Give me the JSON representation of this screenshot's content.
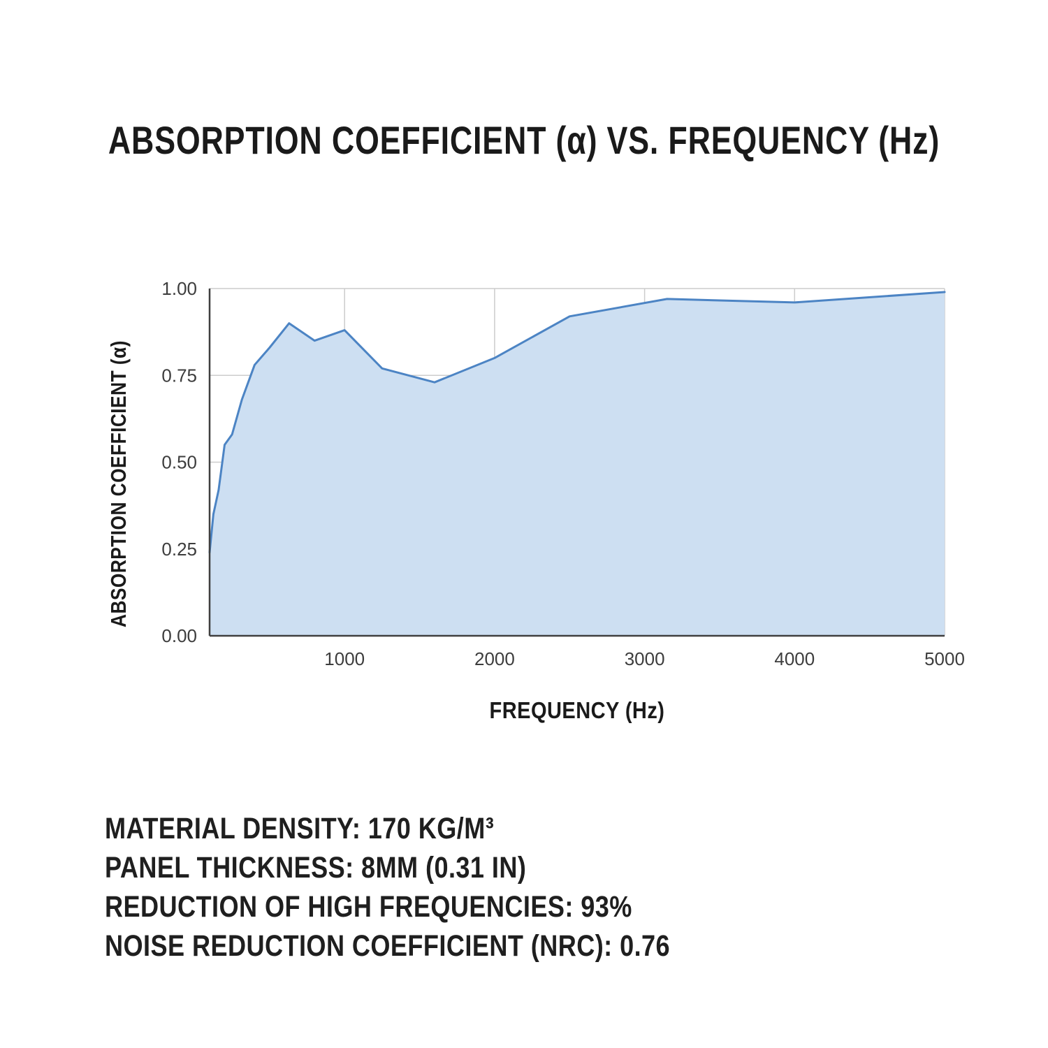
{
  "title": "ABSORPTION COEFFICIENT (α) VS. FREQUENCY (Hz)",
  "chart_data": {
    "type": "area",
    "title": "ABSORPTION COEFFICIENT (α) VS. FREQUENCY (Hz)",
    "xlabel": "FREQUENCY (Hz)",
    "ylabel": "ABSORPTION COEFFICIENT (α)",
    "x": [
      100,
      125,
      160,
      200,
      250,
      315,
      400,
      500,
      630,
      800,
      1000,
      1250,
      1600,
      2000,
      2500,
      3150,
      4000,
      5000
    ],
    "values": [
      0.24,
      0.35,
      0.42,
      0.55,
      0.58,
      0.68,
      0.78,
      0.83,
      0.9,
      0.85,
      0.88,
      0.77,
      0.73,
      0.8,
      0.92,
      0.97,
      0.96,
      0.99
    ],
    "xlim": [
      100,
      5000
    ],
    "ylim": [
      0,
      1.0
    ],
    "x_ticks": [
      1000,
      2000,
      3000,
      4000,
      5000
    ],
    "y_ticks": [
      0,
      0.25,
      0.5,
      0.75,
      1.0
    ],
    "x_tick_labels": [
      "1000",
      "2000",
      "3000",
      "4000",
      "5000"
    ],
    "y_tick_labels": [
      "0.00",
      "0.25",
      "0.50",
      "0.75",
      "1.00"
    ],
    "grid": true,
    "legend": "none",
    "line_color": "#4c84c4",
    "fill_color": "#cddff2"
  },
  "specs": {
    "lines": [
      "MATERIAL DENSITY: 170 KG/M³",
      "PANEL THICKNESS: 8MM (0.31 IN)",
      "REDUCTION OF HIGH FREQUENCIES: 93%",
      "NOISE REDUCTION COEFFICIENT (NRC): 0.76"
    ]
  },
  "colors": {
    "background": "#ffffff",
    "text": "#1a1a1a",
    "grid": "#cccccc",
    "spine": "#3f3f3f"
  }
}
